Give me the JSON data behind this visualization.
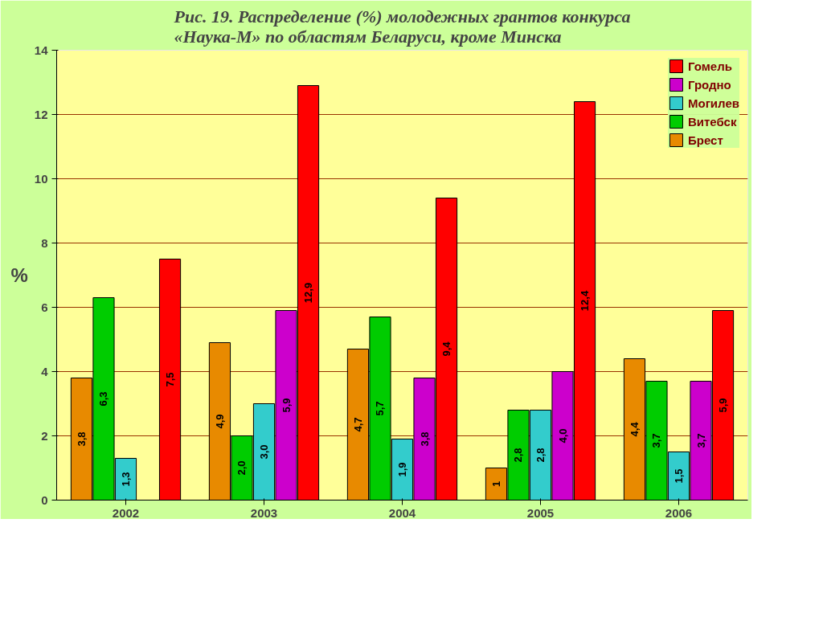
{
  "chart_data": {
    "type": "bar",
    "title": "Рис. 19. Распределение (%) молодежных грантов конкурса «Наука-М» по областям Беларуси, кроме Минска",
    "ylabel": "%",
    "categories": [
      "2002",
      "2003",
      "2004",
      "2005",
      "2006"
    ],
    "series": [
      {
        "name": "Брест",
        "color": "#e88a00",
        "values": [
          3.8,
          4.9,
          4.7,
          1,
          4.4
        ],
        "value_labels": [
          "3,8",
          "4,9",
          "4,7",
          "1",
          "4,4"
        ]
      },
      {
        "name": "Витебск",
        "color": "#00cc00",
        "values": [
          6.3,
          2.0,
          5.7,
          2.8,
          3.7
        ],
        "value_labels": [
          "6,3",
          "2,0",
          "5,7",
          "2,8",
          "3,7"
        ]
      },
      {
        "name": "Могилев",
        "color": "#33cccc",
        "values": [
          1.3,
          3.0,
          1.9,
          2.8,
          1.5
        ],
        "value_labels": [
          "1,3",
          "3,0",
          "1,9",
          "2,8",
          "1,5"
        ]
      },
      {
        "name": "Гродно",
        "color": "#cc00cc",
        "values": [
          null,
          5.9,
          3.8,
          4.0,
          3.7
        ],
        "value_labels": [
          null,
          "5,9",
          "3,8",
          "4,0",
          "3,7"
        ]
      },
      {
        "name": "Гомель",
        "color": "#ff0000",
        "values": [
          7.5,
          12.9,
          9.4,
          12.4,
          5.9
        ],
        "value_labels": [
          "7,5",
          "12,9",
          "9,4",
          "12,4",
          "5,9"
        ]
      }
    ],
    "ylim": [
      0,
      14
    ],
    "yticks": [
      0,
      2,
      4,
      6,
      8,
      10,
      12,
      14
    ],
    "grid": "y",
    "legend": "top right"
  }
}
